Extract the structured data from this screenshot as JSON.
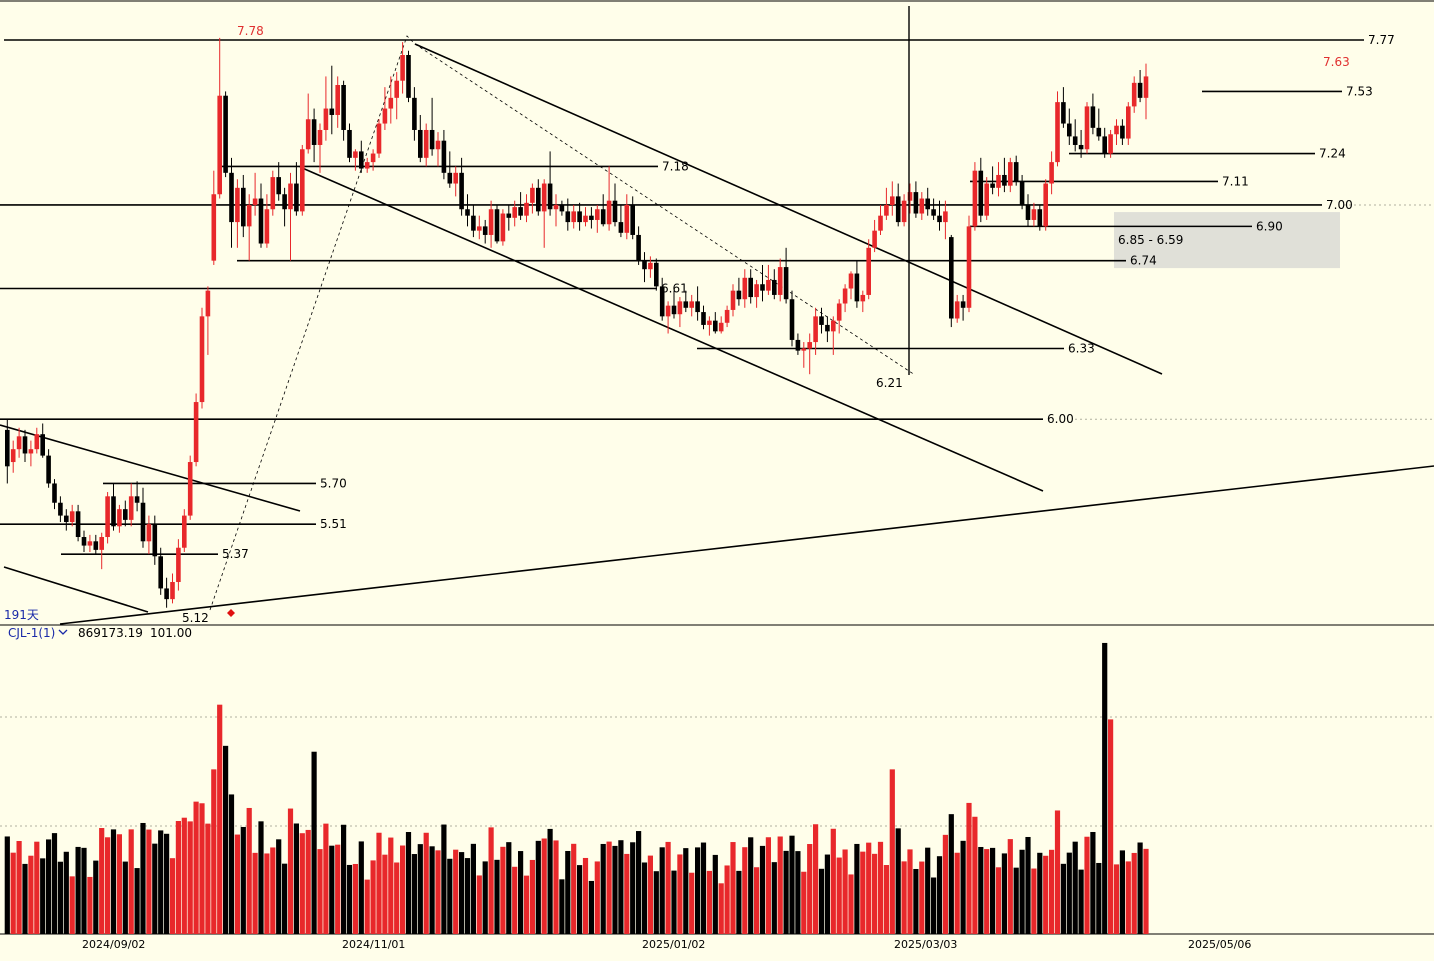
{
  "header": {
    "top_text": ""
  },
  "chart_data": [
    {
      "type": "candlestick",
      "title": "",
      "ylim": [
        5.0,
        7.85
      ],
      "dates": [
        "2024/09/02",
        "2024/11/01",
        "2025/01/02",
        "2025/03/03",
        "2025/05/06"
      ],
      "period_label": "191天",
      "price_lines": [
        {
          "value": 7.77,
          "label": "7.77"
        },
        {
          "value": 7.53,
          "label": "7.53"
        },
        {
          "value": 7.24,
          "label": "7.24"
        },
        {
          "value": 7.18,
          "label": "7.18"
        },
        {
          "value": 7.11,
          "label": "7.11"
        },
        {
          "value": 7.0,
          "label": "7.00"
        },
        {
          "value": 6.9,
          "label": "6.90"
        },
        {
          "value": 6.74,
          "label": "6.74"
        },
        {
          "value": 6.61,
          "label": "6.61"
        },
        {
          "value": 6.33,
          "label": "6.33"
        },
        {
          "value": 6.0,
          "label": "6.00"
        },
        {
          "value": 5.7,
          "label": "5.70"
        },
        {
          "value": 5.51,
          "label": "5.51"
        },
        {
          "value": 5.37,
          "label": "5.37"
        }
      ],
      "extreme_labels": [
        {
          "label": "7.78",
          "value": 7.78,
          "color": "#e03030"
        },
        {
          "label": "7.63",
          "value": 7.63,
          "color": "#e03030"
        },
        {
          "label": "6.21",
          "value": 6.21,
          "color": "#000000"
        },
        {
          "label": "5.12",
          "value": 5.12,
          "color": "#000000"
        }
      ],
      "gap_zone": {
        "high": 6.85,
        "low": 6.59,
        "label": "6.85 - 6.59"
      },
      "candles": [
        [
          5.95,
          6.0,
          5.7,
          5.78
        ],
        [
          5.8,
          5.9,
          5.75,
          5.86
        ],
        [
          5.86,
          5.96,
          5.82,
          5.92
        ],
        [
          5.92,
          5.95,
          5.8,
          5.84
        ],
        [
          5.84,
          5.9,
          5.78,
          5.86
        ],
        [
          5.86,
          5.96,
          5.84,
          5.93
        ],
        [
          5.93,
          5.98,
          5.82,
          5.83
        ],
        [
          5.83,
          5.86,
          5.68,
          5.7
        ],
        [
          5.7,
          5.72,
          5.58,
          5.61
        ],
        [
          5.61,
          5.64,
          5.52,
          5.55
        ],
        [
          5.55,
          5.58,
          5.48,
          5.52
        ],
        [
          5.52,
          5.6,
          5.5,
          5.57
        ],
        [
          5.57,
          5.6,
          5.43,
          5.45
        ],
        [
          5.45,
          5.48,
          5.38,
          5.41
        ],
        [
          5.41,
          5.46,
          5.38,
          5.43
        ],
        [
          5.43,
          5.46,
          5.37,
          5.39
        ],
        [
          5.39,
          5.47,
          5.3,
          5.45
        ],
        [
          5.45,
          5.66,
          5.42,
          5.64
        ],
        [
          5.64,
          5.7,
          5.48,
          5.5
        ],
        [
          5.5,
          5.6,
          5.47,
          5.58
        ],
        [
          5.58,
          5.62,
          5.5,
          5.53
        ],
        [
          5.53,
          5.7,
          5.5,
          5.64
        ],
        [
          5.64,
          5.71,
          5.57,
          5.61
        ],
        [
          5.61,
          5.68,
          5.4,
          5.43
        ],
        [
          5.43,
          5.55,
          5.37,
          5.51
        ],
        [
          5.51,
          5.55,
          5.32,
          5.36
        ],
        [
          5.36,
          5.4,
          5.18,
          5.21
        ],
        [
          5.21,
          5.26,
          5.12,
          5.16
        ],
        [
          5.16,
          5.28,
          5.14,
          5.24
        ],
        [
          5.24,
          5.44,
          5.2,
          5.4
        ],
        [
          5.4,
          5.58,
          5.38,
          5.55
        ],
        [
          5.55,
          5.83,
          5.53,
          5.8
        ],
        [
          5.8,
          6.12,
          5.78,
          6.08
        ],
        [
          6.08,
          6.52,
          6.05,
          6.48
        ],
        [
          6.48,
          6.62,
          6.3,
          6.6
        ],
        [
          6.74,
          7.16,
          6.72,
          7.05
        ],
        [
          7.05,
          7.78,
          7.03,
          7.51
        ],
        [
          7.51,
          7.53,
          7.13,
          7.15
        ],
        [
          7.15,
          7.22,
          6.8,
          6.92
        ],
        [
          6.92,
          7.12,
          6.8,
          7.08
        ],
        [
          7.08,
          7.14,
          6.85,
          6.9
        ],
        [
          6.9,
          7.05,
          6.74,
          7.0
        ],
        [
          7.0,
          7.15,
          6.95,
          7.03
        ],
        [
          7.03,
          7.1,
          6.8,
          6.82
        ],
        [
          6.82,
          7.05,
          6.8,
          6.98
        ],
        [
          6.98,
          7.16,
          6.95,
          7.13
        ],
        [
          7.13,
          7.2,
          7.02,
          7.05
        ],
        [
          7.05,
          7.08,
          6.9,
          6.98
        ],
        [
          6.98,
          7.15,
          6.74,
          7.1
        ],
        [
          7.1,
          7.2,
          6.95,
          6.97
        ],
        [
          6.97,
          7.28,
          6.95,
          7.26
        ],
        [
          7.26,
          7.52,
          7.24,
          7.4
        ],
        [
          7.4,
          7.45,
          7.2,
          7.28
        ],
        [
          7.28,
          7.38,
          7.15,
          7.35
        ],
        [
          7.35,
          7.6,
          7.3,
          7.45
        ],
        [
          7.45,
          7.65,
          7.33,
          7.42
        ],
        [
          7.42,
          7.6,
          7.36,
          7.56
        ],
        [
          7.56,
          7.58,
          7.3,
          7.35
        ],
        [
          7.35,
          7.38,
          7.2,
          7.22
        ],
        [
          7.22,
          7.26,
          7.16,
          7.25
        ],
        [
          7.25,
          7.3,
          7.15,
          7.17
        ],
        [
          7.17,
          7.22,
          7.15,
          7.2
        ],
        [
          7.2,
          7.26,
          7.16,
          7.24
        ],
        [
          7.24,
          7.4,
          7.22,
          7.38
        ],
        [
          7.38,
          7.55,
          7.35,
          7.45
        ],
        [
          7.45,
          7.6,
          7.38,
          7.5
        ],
        [
          7.5,
          7.62,
          7.4,
          7.58
        ],
        [
          7.58,
          7.76,
          7.52,
          7.7
        ],
        [
          7.7,
          7.72,
          7.48,
          7.5
        ],
        [
          7.5,
          7.55,
          7.3,
          7.35
        ],
        [
          7.35,
          7.42,
          7.2,
          7.22
        ],
        [
          7.22,
          7.38,
          7.18,
          7.35
        ],
        [
          7.35,
          7.5,
          7.23,
          7.26
        ],
        [
          7.26,
          7.34,
          7.18,
          7.3
        ],
        [
          7.3,
          7.35,
          7.12,
          7.15
        ],
        [
          7.15,
          7.25,
          7.08,
          7.1
        ],
        [
          7.1,
          7.18,
          7.04,
          7.15
        ],
        [
          7.15,
          7.22,
          6.95,
          6.98
        ],
        [
          6.98,
          7.05,
          6.9,
          6.95
        ],
        [
          6.95,
          7.0,
          6.85,
          6.88
        ],
        [
          6.88,
          6.95,
          6.84,
          6.9
        ],
        [
          6.9,
          6.93,
          6.82,
          6.86
        ],
        [
          6.86,
          7.02,
          6.8,
          6.98
        ],
        [
          6.98,
          7.0,
          6.82,
          6.83
        ],
        [
          6.83,
          6.98,
          6.81,
          6.96
        ],
        [
          6.96,
          7.0,
          6.88,
          6.94
        ],
        [
          6.94,
          7.02,
          6.9,
          6.99
        ],
        [
          6.99,
          7.06,
          6.93,
          6.95
        ],
        [
          6.95,
          7.05,
          6.92,
          7.01
        ],
        [
          7.01,
          7.1,
          6.96,
          7.08
        ],
        [
          7.08,
          7.12,
          6.95,
          6.97
        ],
        [
          6.97,
          7.12,
          6.8,
          7.1
        ],
        [
          7.1,
          7.25,
          6.95,
          6.98
        ],
        [
          6.98,
          7.05,
          6.9,
          7.0
        ],
        [
          7.0,
          7.02,
          6.95,
          6.97
        ],
        [
          6.97,
          7.03,
          6.88,
          6.92
        ],
        [
          6.92,
          7.0,
          6.89,
          6.97
        ],
        [
          6.97,
          7.01,
          6.88,
          6.92
        ],
        [
          6.92,
          6.99,
          6.9,
          6.95
        ],
        [
          6.95,
          6.99,
          6.89,
          6.93
        ],
        [
          6.93,
          7.0,
          6.87,
          6.98
        ],
        [
          6.98,
          7.05,
          6.9,
          6.91
        ],
        [
          6.91,
          7.18,
          6.88,
          7.02
        ],
        [
          7.02,
          7.1,
          6.9,
          6.92
        ],
        [
          6.92,
          7.0,
          6.85,
          6.87
        ],
        [
          6.87,
          7.05,
          6.84,
          7.0
        ],
        [
          7.0,
          7.04,
          6.84,
          6.86
        ],
        [
          6.86,
          6.9,
          6.72,
          6.74
        ],
        [
          6.74,
          6.78,
          6.64,
          6.7
        ],
        [
          6.7,
          6.76,
          6.66,
          6.73
        ],
        [
          6.73,
          6.75,
          6.6,
          6.62
        ],
        [
          6.62,
          6.66,
          6.46,
          6.48
        ],
        [
          6.48,
          6.55,
          6.4,
          6.53
        ],
        [
          6.53,
          6.6,
          6.47,
          6.49
        ],
        [
          6.49,
          6.57,
          6.43,
          6.55
        ],
        [
          6.55,
          6.6,
          6.5,
          6.52
        ],
        [
          6.52,
          6.58,
          6.48,
          6.55
        ],
        [
          6.55,
          6.62,
          6.46,
          6.5
        ],
        [
          6.5,
          6.53,
          6.42,
          6.44
        ],
        [
          6.44,
          6.48,
          6.39,
          6.46
        ],
        [
          6.46,
          6.5,
          6.4,
          6.41
        ],
        [
          6.41,
          6.48,
          6.4,
          6.45
        ],
        [
          6.45,
          6.53,
          6.43,
          6.51
        ],
        [
          6.51,
          6.63,
          6.48,
          6.6
        ],
        [
          6.6,
          6.66,
          6.53,
          6.56
        ],
        [
          6.56,
          6.7,
          6.52,
          6.66
        ],
        [
          6.66,
          6.7,
          6.54,
          6.57
        ],
        [
          6.57,
          6.65,
          6.52,
          6.63
        ],
        [
          6.63,
          6.72,
          6.55,
          6.6
        ],
        [
          6.6,
          6.72,
          6.58,
          6.65
        ],
        [
          6.65,
          6.7,
          6.56,
          6.58
        ],
        [
          6.58,
          6.75,
          6.55,
          6.71
        ],
        [
          6.71,
          6.8,
          6.54,
          6.56
        ],
        [
          6.56,
          6.6,
          6.34,
          6.37
        ],
        [
          6.37,
          6.4,
          6.3,
          6.32
        ],
        [
          6.32,
          6.36,
          6.24,
          6.33
        ],
        [
          6.33,
          6.4,
          6.21,
          6.36
        ],
        [
          6.36,
          6.52,
          6.3,
          6.48
        ],
        [
          6.48,
          6.52,
          6.4,
          6.44
        ],
        [
          6.44,
          6.48,
          6.36,
          6.41
        ],
        [
          6.41,
          6.48,
          6.3,
          6.46
        ],
        [
          6.46,
          6.56,
          6.4,
          6.54
        ],
        [
          6.54,
          6.63,
          6.5,
          6.61
        ],
        [
          6.61,
          6.69,
          6.56,
          6.68
        ],
        [
          6.68,
          6.74,
          6.52,
          6.55
        ],
        [
          6.55,
          6.6,
          6.5,
          6.58
        ],
        [
          6.58,
          6.84,
          6.56,
          6.8
        ],
        [
          6.8,
          6.93,
          6.78,
          6.88
        ],
        [
          6.88,
          7.0,
          6.86,
          6.95
        ],
        [
          6.95,
          7.08,
          6.93,
          7.0
        ],
        [
          7.0,
          7.11,
          6.95,
          7.04
        ],
        [
          7.04,
          7.1,
          6.9,
          6.92
        ],
        [
          6.92,
          7.05,
          6.9,
          7.02
        ],
        [
          7.02,
          7.1,
          6.96,
          7.06
        ],
        [
          7.06,
          7.11,
          6.94,
          6.96
        ],
        [
          6.96,
          7.06,
          6.93,
          7.03
        ],
        [
          7.03,
          7.08,
          6.95,
          6.98
        ],
        [
          6.98,
          7.03,
          6.93,
          6.95
        ],
        [
          6.95,
          7.02,
          6.88,
          6.92
        ],
        [
          6.92,
          7.02,
          6.84,
          6.97
        ],
        [
          6.85,
          6.86,
          6.43,
          6.47
        ],
        [
          6.47,
          6.58,
          6.45,
          6.55
        ],
        [
          6.55,
          6.58,
          6.46,
          6.52
        ],
        [
          6.52,
          6.95,
          6.5,
          6.9
        ],
        [
          6.9,
          7.2,
          6.88,
          7.16
        ],
        [
          7.16,
          7.22,
          6.92,
          6.95
        ],
        [
          6.95,
          7.13,
          6.93,
          7.1
        ],
        [
          7.1,
          7.18,
          7.05,
          7.08
        ],
        [
          7.08,
          7.2,
          7.04,
          7.14
        ],
        [
          7.14,
          7.22,
          7.06,
          7.09
        ],
        [
          7.09,
          7.22,
          7.06,
          7.2
        ],
        [
          7.2,
          7.23,
          7.09,
          7.11
        ],
        [
          7.11,
          7.14,
          6.98,
          7.0
        ],
        [
          7.0,
          7.05,
          6.9,
          6.93
        ],
        [
          6.93,
          7.01,
          6.9,
          6.98
        ],
        [
          6.98,
          7.0,
          6.88,
          6.9
        ],
        [
          6.9,
          7.12,
          6.88,
          7.1
        ],
        [
          7.1,
          7.25,
          7.05,
          7.2
        ],
        [
          7.2,
          7.53,
          7.18,
          7.48
        ],
        [
          7.48,
          7.55,
          7.36,
          7.38
        ],
        [
          7.38,
          7.45,
          7.28,
          7.32
        ],
        [
          7.32,
          7.4,
          7.25,
          7.28
        ],
        [
          7.28,
          7.35,
          7.22,
          7.26
        ],
        [
          7.26,
          7.48,
          7.24,
          7.46
        ],
        [
          7.46,
          7.52,
          7.33,
          7.36
        ],
        [
          7.36,
          7.45,
          7.3,
          7.32
        ],
        [
          7.32,
          7.36,
          7.22,
          7.24
        ],
        [
          7.24,
          7.35,
          7.22,
          7.33
        ],
        [
          7.33,
          7.4,
          7.28,
          7.37
        ],
        [
          7.37,
          7.4,
          7.28,
          7.31
        ],
        [
          7.31,
          7.48,
          7.28,
          7.46
        ],
        [
          7.46,
          7.6,
          7.43,
          7.57
        ],
        [
          7.57,
          7.63,
          7.48,
          7.5
        ],
        [
          7.5,
          7.66,
          7.4,
          7.6
        ]
      ],
      "volume_indicator": {
        "name": "CJL-1(1)",
        "value_text": "869173.19",
        "value2_text": "101.00",
        "ymax": 1000000
      }
    }
  ]
}
